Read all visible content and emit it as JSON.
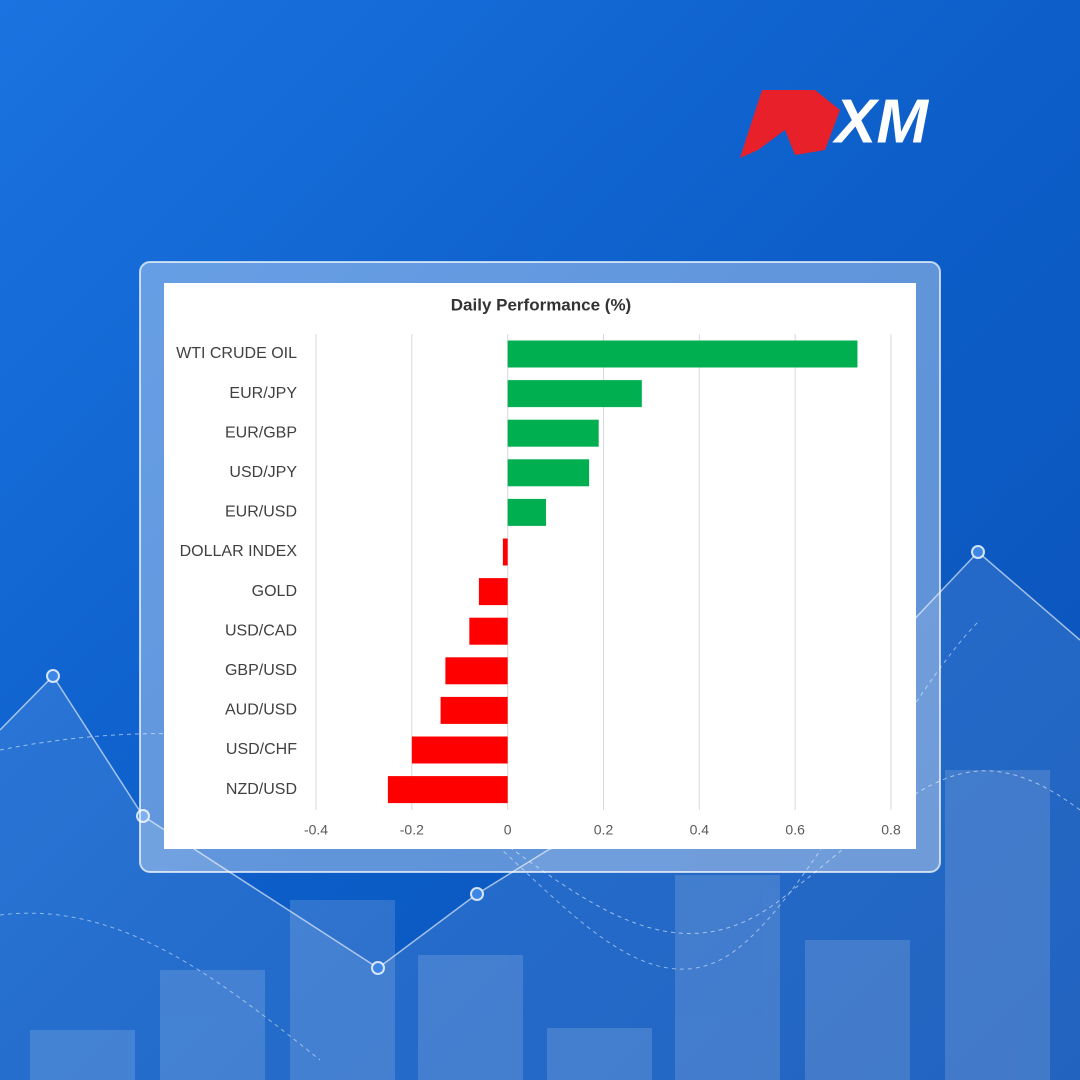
{
  "logo": "XM",
  "chart_data": {
    "type": "hbar",
    "title": "Daily Performance (%)",
    "categories": [
      "WTI CRUDE OIL",
      "EUR/JPY",
      "EUR/GBP",
      "USD/JPY",
      "EUR/USD",
      "DOLLAR INDEX",
      "GOLD",
      "USD/CAD",
      "GBP/USD",
      "AUD/USD",
      "USD/CHF",
      "NZD/USD"
    ],
    "values": [
      0.73,
      0.28,
      0.19,
      0.17,
      0.08,
      -0.01,
      -0.06,
      -0.08,
      -0.13,
      -0.14,
      -0.2,
      -0.25
    ],
    "colors": [
      "#00b050",
      "#00b050",
      "#00b050",
      "#00b050",
      "#00b050",
      "#ff0000",
      "#ff0000",
      "#ff0000",
      "#ff0000",
      "#ff0000",
      "#ff0000",
      "#ff0000"
    ],
    "xlim": [
      -0.4,
      0.8
    ],
    "xticks": [
      -0.4,
      -0.2,
      0,
      0.2,
      0.4,
      0.6,
      0.8
    ],
    "grid": true
  }
}
